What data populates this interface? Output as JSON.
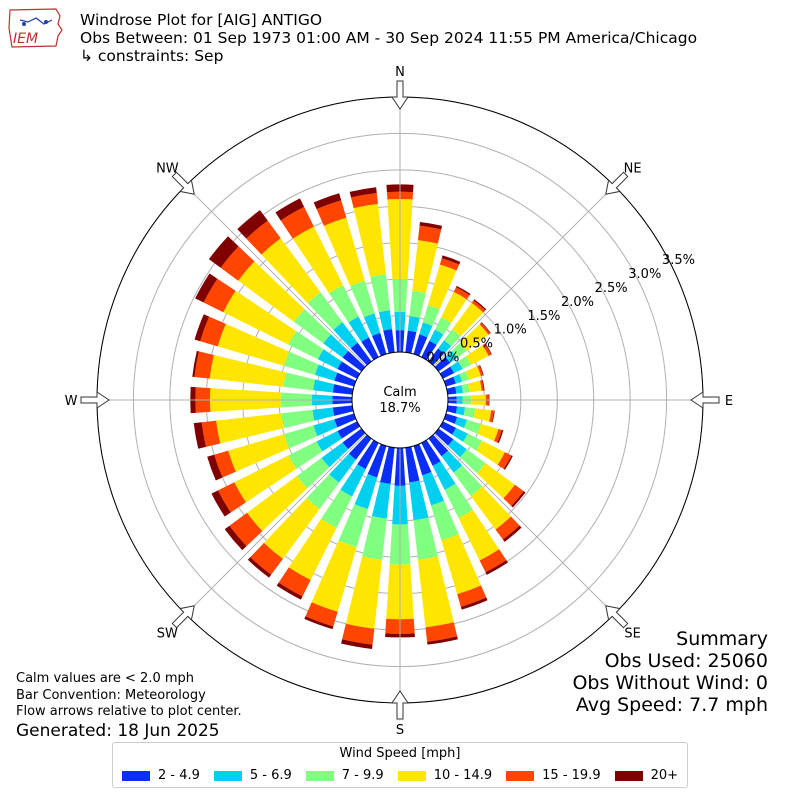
{
  "header": {
    "title": "Windrose Plot for [AIG] ANTIGO",
    "obs_between": "Obs Between: 01 Sep 1973 01:00 AM - 30 Sep 2024 11:55 PM America/Chicago",
    "constraints": "↳ constraints: Sep"
  },
  "logo": {
    "text": "IEM"
  },
  "notes": {
    "calm_note": "Calm values are < 2.0 mph",
    "bar_convention": "Bar Convention: Meteorology",
    "flow_arrows": "Flow arrows relative to plot center.",
    "generated": "Generated: 18 Jun 2025"
  },
  "summary": {
    "title": "Summary",
    "obs_used": "Obs Used: 25060",
    "obs_without_wind": "Obs Without Wind: 0",
    "avg_speed": "Avg Speed: 7.7 mph"
  },
  "chart_data": {
    "type": "windrose",
    "calm_label": "Calm",
    "calm_value": "18.7%",
    "calm_percent": 18.7,
    "radial_ticks": [
      "0.0%",
      "0.5%",
      "1.0%",
      "1.5%",
      "2.0%",
      "2.5%",
      "3.0%",
      "3.5%"
    ],
    "rmax": 3.5,
    "compass": [
      {
        "label": "N",
        "angle": 0
      },
      {
        "label": "NE",
        "angle": 45
      },
      {
        "label": "E",
        "angle": 90
      },
      {
        "label": "SE",
        "angle": 135
      },
      {
        "label": "S",
        "angle": 180
      },
      {
        "label": "SW",
        "angle": 225
      },
      {
        "label": "W",
        "angle": 270
      },
      {
        "label": "NW",
        "angle": 315
      }
    ],
    "direction_step_deg": 10,
    "legend_title": "Wind Speed [mph]",
    "bins": [
      {
        "label": "2 - 4.9",
        "color": "#0a2ef5"
      },
      {
        "label": "5 - 6.9",
        "color": "#00d0f0"
      },
      {
        "label": "7 - 9.9",
        "color": "#80ff80"
      },
      {
        "label": "10 - 14.9",
        "color": "#ffe600"
      },
      {
        "label": "15 - 19.9",
        "color": "#ff4500"
      },
      {
        "label": "20+",
        "color": "#800000"
      }
    ],
    "cumulative_percent": [
      [
        0.3,
        0.55,
        1.0,
        2.1,
        2.2,
        2.3
      ],
      [
        0.3,
        0.5,
        0.85,
        1.55,
        1.75,
        1.8
      ],
      [
        0.28,
        0.45,
        0.7,
        1.28,
        1.37,
        1.41
      ],
      [
        0.25,
        0.42,
        0.61,
        1.0,
        1.07,
        1.09
      ],
      [
        0.22,
        0.36,
        0.55,
        1.0,
        1.04,
        1.06
      ],
      [
        0.2,
        0.32,
        0.48,
        0.85,
        0.88,
        0.89
      ],
      [
        0.17,
        0.3,
        0.43,
        0.7,
        0.74,
        0.75
      ],
      [
        0.14,
        0.23,
        0.33,
        0.5,
        0.53,
        0.54
      ],
      [
        0.12,
        0.21,
        0.3,
        0.47,
        0.5,
        0.51
      ],
      [
        0.12,
        0.2,
        0.32,
        0.52,
        0.56,
        0.57
      ],
      [
        0.13,
        0.24,
        0.38,
        0.6,
        0.64,
        0.65
      ],
      [
        0.16,
        0.3,
        0.5,
        0.75,
        0.8,
        0.82
      ],
      [
        0.2,
        0.38,
        0.6,
        0.95,
        1.05,
        1.07
      ],
      [
        0.25,
        0.48,
        0.8,
        1.3,
        1.45,
        1.48
      ],
      [
        0.3,
        0.58,
        0.98,
        1.55,
        1.72,
        1.76
      ],
      [
        0.35,
        0.72,
        1.15,
        1.8,
        1.98,
        2.02
      ],
      [
        0.42,
        0.85,
        1.35,
        2.12,
        2.3,
        2.34
      ],
      [
        0.48,
        1.0,
        1.55,
        2.48,
        2.68,
        2.72
      ],
      [
        0.52,
        1.05,
        1.6,
        2.35,
        2.55,
        2.6
      ],
      [
        0.5,
        0.98,
        1.55,
        2.5,
        2.72,
        2.78
      ],
      [
        0.45,
        0.9,
        1.45,
        2.37,
        2.58,
        2.62
      ],
      [
        0.4,
        0.82,
        1.3,
        2.1,
        2.35,
        2.4
      ],
      [
        0.36,
        0.75,
        1.2,
        2.05,
        2.32,
        2.37
      ],
      [
        0.32,
        0.68,
        1.1,
        1.95,
        2.25,
        2.33
      ],
      [
        0.3,
        0.62,
        1.05,
        1.88,
        2.13,
        2.23
      ],
      [
        0.28,
        0.58,
        1.0,
        1.8,
        2.0,
        2.1
      ],
      [
        0.27,
        0.55,
        0.98,
        1.88,
        2.08,
        2.19
      ],
      [
        0.27,
        0.55,
        0.98,
        1.95,
        2.15,
        2.22
      ],
      [
        0.27,
        0.54,
        0.95,
        1.97,
        2.18,
        2.21
      ],
      [
        0.28,
        0.56,
        1.0,
        1.95,
        2.2,
        2.28
      ],
      [
        0.3,
        0.6,
        1.05,
        2.05,
        2.35,
        2.48
      ],
      [
        0.32,
        0.65,
        1.15,
        2.1,
        2.4,
        2.6
      ],
      [
        0.32,
        0.67,
        1.18,
        2.1,
        2.4,
        2.58
      ],
      [
        0.3,
        0.62,
        1.1,
        2.0,
        2.3,
        2.43
      ],
      [
        0.3,
        0.58,
        1.05,
        1.95,
        2.2,
        2.3
      ],
      [
        0.32,
        0.58,
        1.08,
        2.05,
        2.2,
        2.28
      ]
    ]
  }
}
